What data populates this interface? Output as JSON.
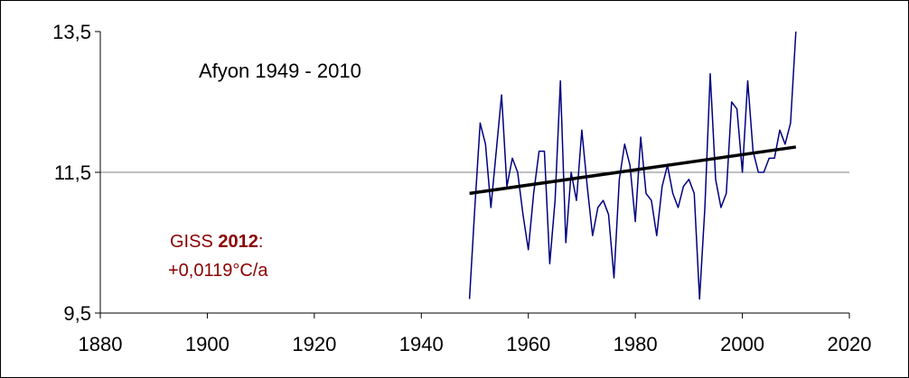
{
  "chart_data": {
    "type": "line",
    "title": "Afyon  1949 - 2010",
    "xlabel": "",
    "ylabel": "",
    "xlim": [
      1880,
      2020
    ],
    "ylim": [
      9.5,
      13.5
    ],
    "x_ticks": [
      1880,
      1900,
      1920,
      1940,
      1960,
      1980,
      2000,
      2020
    ],
    "y_ticks": [
      9.5,
      11.5,
      13.5
    ],
    "x_tick_labels": [
      "1880",
      "1900",
      "1920",
      "1940",
      "1960",
      "1980",
      "2000",
      "2020"
    ],
    "y_tick_labels": [
      "9,5",
      "11,5",
      "13,5"
    ],
    "grid": "horizontal at 11.5",
    "series": [
      {
        "x": [
          1949,
          1950,
          1951,
          1952,
          1953,
          1954,
          1955,
          1956,
          1957,
          1958,
          1959,
          1960,
          1961,
          1962,
          1963,
          1964,
          1965,
          1966,
          1967,
          1968,
          1969,
          1970,
          1971,
          1972,
          1973,
          1974,
          1975,
          1976,
          1977,
          1978,
          1979,
          1980,
          1981,
          1982,
          1983,
          1984,
          1985,
          1986,
          1987,
          1988,
          1989,
          1990,
          1991,
          1992,
          1993,
          1994,
          1995,
          1996,
          1997,
          1998,
          1999,
          2000,
          2001,
          2002,
          2003,
          2004,
          2005,
          2006,
          2007,
          2008,
          2009,
          2010
        ],
        "values": [
          9.7,
          11.0,
          12.2,
          11.9,
          11.0,
          11.8,
          12.6,
          11.3,
          11.7,
          11.5,
          10.9,
          10.4,
          11.2,
          11.8,
          11.8,
          10.2,
          11.1,
          12.8,
          10.5,
          11.5,
          11.1,
          12.1,
          11.3,
          10.6,
          11.0,
          11.1,
          10.9,
          10.0,
          11.4,
          11.9,
          11.6,
          10.8,
          12.0,
          11.2,
          11.1,
          10.6,
          11.3,
          11.6,
          11.2,
          11.0,
          11.3,
          11.4,
          11.2,
          9.7,
          11.0,
          12.9,
          11.4,
          11.0,
          11.2,
          12.5,
          12.4,
          11.5,
          12.8,
          11.8,
          11.5,
          11.5,
          11.7,
          11.7,
          12.1,
          11.9,
          12.2,
          13.5
        ],
        "color": "#000080"
      },
      {
        "name": "trend",
        "x": [
          1949,
          2010
        ],
        "values": [
          11.2,
          11.86
        ],
        "color": "#000000"
      }
    ],
    "annotations": [
      {
        "prefix": "GISS ",
        "bold": "2012",
        "suffix": ":",
        "color": "#8b0000"
      },
      {
        "text": "+0,0119°C/a",
        "color": "#8b0000"
      }
    ]
  }
}
